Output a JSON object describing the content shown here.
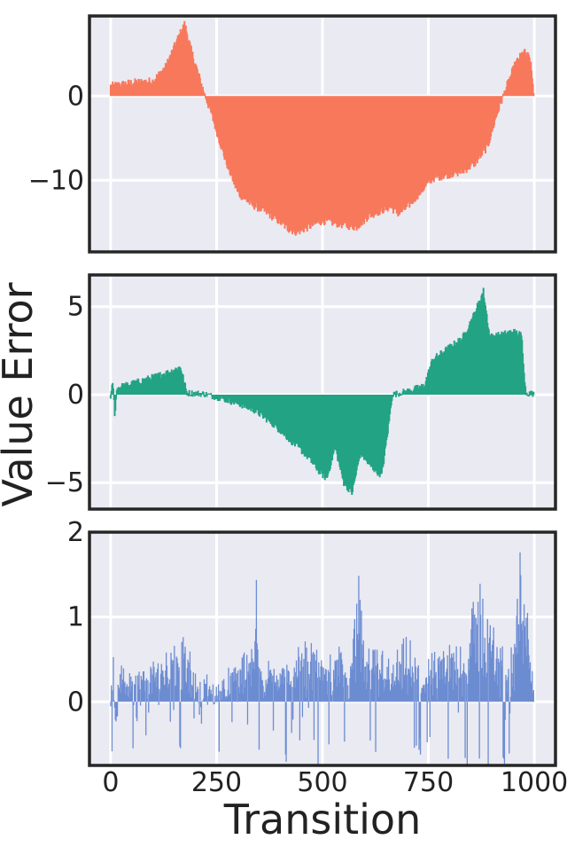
{
  "figure": {
    "ylabel": "Value Error",
    "xlabel": "Transition",
    "colors": {
      "background": "#eaeaf2",
      "grid": "#ffffff",
      "frame": "#262626",
      "text": "#222222"
    }
  },
  "chart_data": [
    {
      "type": "area",
      "panel": "top",
      "color": "#f8785c",
      "xlim": [
        -50,
        1050
      ],
      "ylim": [
        -18.5,
        9.5
      ],
      "xticks": [
        0,
        250,
        500,
        750,
        1000
      ],
      "xtick_labels": [
        "",
        "",
        "",
        "",
        ""
      ],
      "yticks": [
        0,
        -10
      ],
      "ytick_labels": [
        "0",
        "−10"
      ],
      "grid": true,
      "noise": 0.35,
      "points": [
        [
          0,
          1.2
        ],
        [
          50,
          1.6
        ],
        [
          100,
          1.8
        ],
        [
          130,
          3.5
        ],
        [
          160,
          7.0
        ],
        [
          175,
          8.6
        ],
        [
          190,
          5.5
        ],
        [
          220,
          0.5
        ],
        [
          240,
          -2.5
        ],
        [
          270,
          -7.5
        ],
        [
          300,
          -11.5
        ],
        [
          330,
          -12.8
        ],
        [
          360,
          -13.6
        ],
        [
          390,
          -14.6
        ],
        [
          420,
          -15.8
        ],
        [
          440,
          -16.2
        ],
        [
          470,
          -15.5
        ],
        [
          500,
          -14.8
        ],
        [
          540,
          -15.2
        ],
        [
          580,
          -15.6
        ],
        [
          610,
          -14.2
        ],
        [
          640,
          -13.6
        ],
        [
          660,
          -13.2
        ],
        [
          680,
          -14.0
        ],
        [
          700,
          -13.2
        ],
        [
          730,
          -11.5
        ],
        [
          760,
          -9.8
        ],
        [
          800,
          -9.3
        ],
        [
          830,
          -9.0
        ],
        [
          860,
          -8.0
        ],
        [
          890,
          -6.0
        ],
        [
          910,
          -2.5
        ],
        [
          930,
          0.5
        ],
        [
          955,
          3.8
        ],
        [
          975,
          5.3
        ],
        [
          990,
          4.5
        ],
        [
          1000,
          0.0
        ]
      ]
    },
    {
      "type": "area",
      "panel": "middle",
      "color": "#22a384",
      "xlim": [
        -50,
        1050
      ],
      "ylim": [
        -6.5,
        6.8
      ],
      "xticks": [
        0,
        250,
        500,
        750,
        1000
      ],
      "xtick_labels": [
        "",
        "",
        "",
        "",
        ""
      ],
      "yticks": [
        5,
        0,
        -5
      ],
      "ytick_labels": [
        "5",
        "0",
        "−5"
      ],
      "grid": true,
      "noise": 0.3,
      "points": [
        [
          0,
          -0.3
        ],
        [
          5,
          0.8
        ],
        [
          10,
          -1.2
        ],
        [
          15,
          0.4
        ],
        [
          30,
          0.5
        ],
        [
          60,
          0.7
        ],
        [
          100,
          1.0
        ],
        [
          140,
          1.3
        ],
        [
          165,
          1.6
        ],
        [
          175,
          0.6
        ],
        [
          180,
          0.1
        ],
        [
          220,
          0.05
        ],
        [
          260,
          -0.2
        ],
        [
          300,
          -0.5
        ],
        [
          340,
          -0.9
        ],
        [
          380,
          -1.6
        ],
        [
          420,
          -2.5
        ],
        [
          460,
          -3.4
        ],
        [
          490,
          -4.3
        ],
        [
          510,
          -4.8
        ],
        [
          530,
          -3.0
        ],
        [
          550,
          -5.0
        ],
        [
          570,
          -5.6
        ],
        [
          590,
          -3.3
        ],
        [
          610,
          -4.0
        ],
        [
          640,
          -4.6
        ],
        [
          655,
          -2.0
        ],
        [
          665,
          0.0
        ],
        [
          700,
          0.2
        ],
        [
          740,
          0.5
        ],
        [
          760,
          2.0
        ],
        [
          800,
          2.7
        ],
        [
          830,
          3.2
        ],
        [
          855,
          4.4
        ],
        [
          880,
          5.9
        ],
        [
          895,
          3.3
        ],
        [
          920,
          3.4
        ],
        [
          950,
          3.6
        ],
        [
          970,
          3.4
        ],
        [
          980,
          0.1
        ],
        [
          1000,
          0.05
        ]
      ]
    },
    {
      "type": "area",
      "panel": "bottom",
      "color": "#4c74c9",
      "xlim": [
        -50,
        1050
      ],
      "ylim": [
        -0.75,
        2.0
      ],
      "xticks": [
        0,
        250,
        500,
        750,
        1000
      ],
      "xtick_labels": [
        "0",
        "250",
        "500",
        "750",
        "1000"
      ],
      "yticks": [
        2,
        1,
        0
      ],
      "ytick_labels": [
        "2",
        "1",
        "0"
      ],
      "grid": true,
      "noise": 0.25,
      "points": [
        [
          0,
          0.2
        ],
        [
          5,
          0.85
        ],
        [
          10,
          -0.45
        ],
        [
          20,
          0.3
        ],
        [
          60,
          0.25
        ],
        [
          100,
          0.35
        ],
        [
          140,
          0.55
        ],
        [
          170,
          0.7
        ],
        [
          200,
          0.25
        ],
        [
          240,
          0.15
        ],
        [
          280,
          0.3
        ],
        [
          320,
          0.45
        ],
        [
          345,
          1.3
        ],
        [
          360,
          0.2
        ],
        [
          390,
          0.55
        ],
        [
          420,
          0.35
        ],
        [
          460,
          0.6
        ],
        [
          500,
          0.45
        ],
        [
          540,
          0.55
        ],
        [
          560,
          0.3
        ],
        [
          585,
          1.4
        ],
        [
          600,
          0.4
        ],
        [
          640,
          0.55
        ],
        [
          660,
          0.35
        ],
        [
          700,
          0.6
        ],
        [
          740,
          0.3
        ],
        [
          760,
          0.45
        ],
        [
          800,
          0.55
        ],
        [
          840,
          0.65
        ],
        [
          870,
          1.3
        ],
        [
          890,
          0.9
        ],
        [
          920,
          0.55
        ],
        [
          950,
          0.45
        ],
        [
          970,
          1.8
        ],
        [
          990,
          0.7
        ],
        [
          1000,
          0.0
        ]
      ]
    }
  ]
}
